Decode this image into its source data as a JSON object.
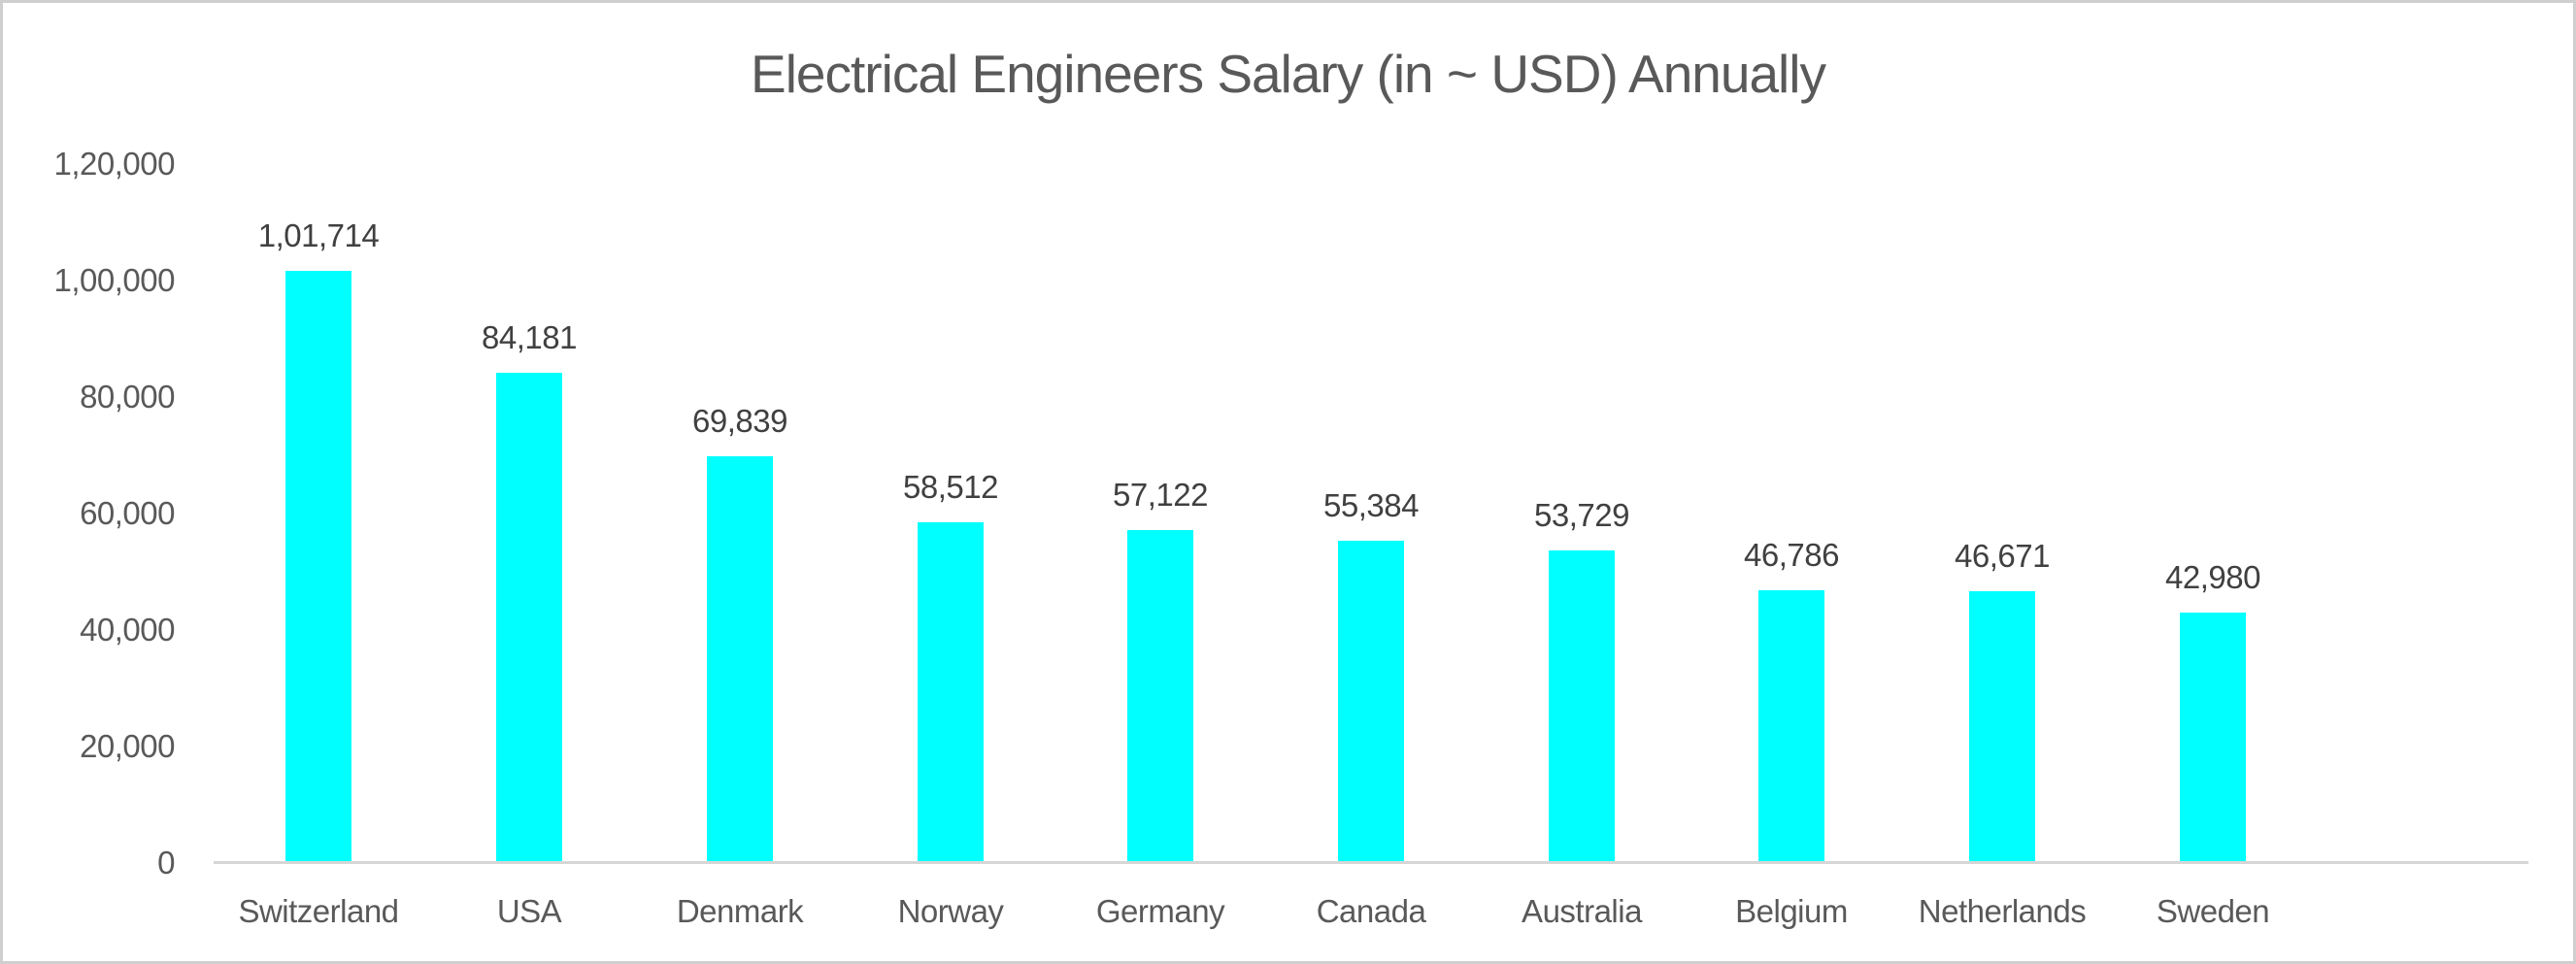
{
  "chart_data": {
    "type": "bar",
    "title": "Electrical Engineers Salary (in ~ USD) Annually",
    "categories": [
      "Switzerland",
      "USA",
      "Denmark",
      "Norway",
      "Germany",
      "Canada",
      "Australia",
      "Belgium",
      "Netherlands",
      "Sweden"
    ],
    "values": [
      101714,
      84181,
      69839,
      58512,
      57122,
      55384,
      53729,
      46786,
      46671,
      42980
    ],
    "data_labels": [
      "1,01,714",
      "84,181",
      "69,839",
      "58,512",
      "57,122",
      "55,384",
      "53,729",
      "46,786",
      "46,671",
      "42,980"
    ],
    "xlabel": "",
    "ylabel": "",
    "y_axis": {
      "min": 0,
      "max": 120000,
      "tick_values": [
        0,
        20000,
        40000,
        60000,
        80000,
        100000,
        120000
      ],
      "tick_labels": [
        "0",
        "20,000",
        "40,000",
        "60,000",
        "80,000",
        "1,00,000",
        "1,20,000"
      ]
    },
    "layout": {
      "grid": false,
      "legend": "none",
      "empty_trailing_slots": 1
    },
    "style": {
      "bar_color": "#00ffff",
      "title_color": "#595959",
      "axis_text_color": "#595959",
      "data_label_color": "#404040",
      "axis_line_color": "#d6d6d6",
      "background": "#ffffff",
      "frame_border_color": "#cfcfcf"
    }
  }
}
